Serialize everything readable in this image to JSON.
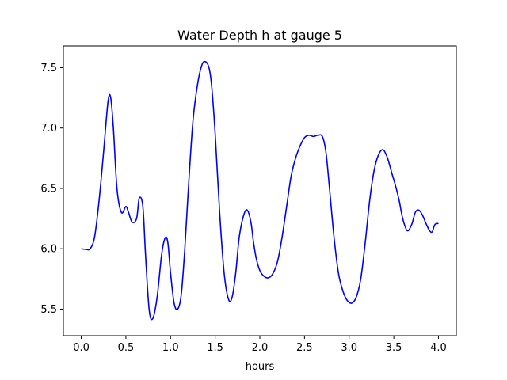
{
  "chart_data": {
    "type": "line",
    "title": "Water Depth h at gauge 5",
    "xlabel": "hours",
    "ylabel": "",
    "xlim": [
      -0.2,
      4.2
    ],
    "ylim": [
      5.28,
      7.68
    ],
    "grid": false,
    "x_ticks": [
      {
        "value": 0.0,
        "label": "0.0"
      },
      {
        "value": 0.5,
        "label": "0.5"
      },
      {
        "value": 1.0,
        "label": "1.0"
      },
      {
        "value": 1.5,
        "label": "1.5"
      },
      {
        "value": 2.0,
        "label": "2.0"
      },
      {
        "value": 2.5,
        "label": "2.5"
      },
      {
        "value": 3.0,
        "label": "3.0"
      },
      {
        "value": 3.5,
        "label": "3.5"
      },
      {
        "value": 4.0,
        "label": "4.0"
      }
    ],
    "y_ticks": [
      {
        "value": 5.5,
        "label": "5.5"
      },
      {
        "value": 6.0,
        "label": "6.0"
      },
      {
        "value": 6.5,
        "label": "6.5"
      },
      {
        "value": 7.0,
        "label": "7.0"
      },
      {
        "value": 7.5,
        "label": "7.5"
      }
    ],
    "series": [
      {
        "color": "#0000ff",
        "x": [
          0.0,
          0.05,
          0.1,
          0.15,
          0.2,
          0.25,
          0.3,
          0.33,
          0.36,
          0.4,
          0.45,
          0.5,
          0.53,
          0.57,
          0.62,
          0.65,
          0.69,
          0.72,
          0.76,
          0.8,
          0.85,
          0.9,
          0.94,
          0.97,
          1.0,
          1.04,
          1.08,
          1.12,
          1.16,
          1.2,
          1.25,
          1.3,
          1.35,
          1.39,
          1.43,
          1.46,
          1.5,
          1.55,
          1.6,
          1.65,
          1.69,
          1.73,
          1.77,
          1.82,
          1.86,
          1.9,
          1.93,
          1.96,
          2.0,
          2.05,
          2.1,
          2.15,
          2.2,
          2.25,
          2.3,
          2.35,
          2.4,
          2.45,
          2.5,
          2.55,
          2.6,
          2.65,
          2.7,
          2.74,
          2.78,
          2.83,
          2.88,
          2.93,
          2.98,
          3.03,
          3.08,
          3.13,
          3.18,
          3.23,
          3.28,
          3.33,
          3.38,
          3.43,
          3.48,
          3.52,
          3.56,
          3.6,
          3.65,
          3.7,
          3.74,
          3.78,
          3.82,
          3.86,
          3.9,
          3.93,
          3.96,
          4.0
        ],
        "y": [
          6.0,
          5.995,
          6.0,
          6.1,
          6.4,
          6.8,
          7.22,
          7.25,
          7.0,
          6.5,
          6.3,
          6.35,
          6.3,
          6.22,
          6.25,
          6.42,
          6.35,
          5.95,
          5.5,
          5.42,
          5.6,
          5.95,
          6.09,
          6.05,
          5.8,
          5.55,
          5.5,
          5.62,
          6.0,
          6.5,
          7.05,
          7.35,
          7.52,
          7.55,
          7.5,
          7.35,
          6.95,
          6.3,
          5.8,
          5.58,
          5.6,
          5.8,
          6.1,
          6.28,
          6.32,
          6.22,
          6.05,
          5.92,
          5.82,
          5.77,
          5.76,
          5.8,
          5.9,
          6.1,
          6.35,
          6.6,
          6.75,
          6.85,
          6.92,
          6.94,
          6.93,
          6.94,
          6.93,
          6.8,
          6.5,
          6.1,
          5.8,
          5.65,
          5.57,
          5.55,
          5.6,
          5.75,
          6.05,
          6.4,
          6.65,
          6.78,
          6.82,
          6.75,
          6.62,
          6.52,
          6.4,
          6.25,
          6.15,
          6.2,
          6.3,
          6.32,
          6.28,
          6.21,
          6.15,
          6.14,
          6.2,
          6.21
        ]
      }
    ]
  }
}
